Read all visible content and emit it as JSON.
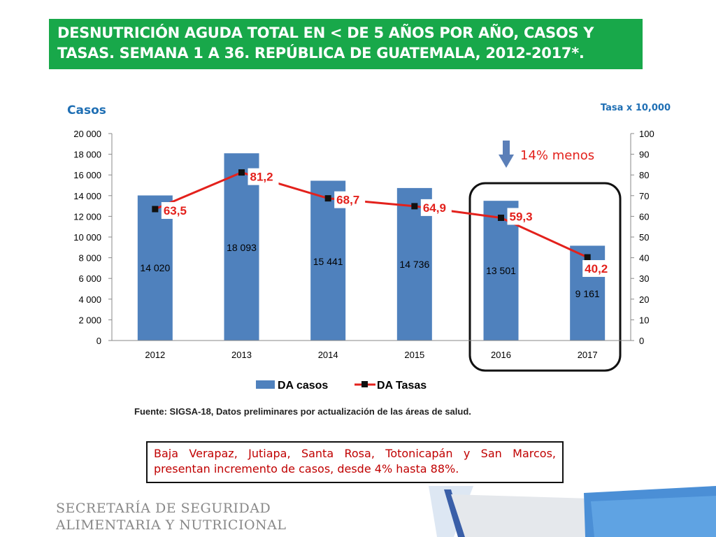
{
  "title": "DESNUTRICIÓN AGUDA TOTAL EN < DE 5 AÑOS POR AÑO, CASOS Y TASAS.  SEMANA 1 A 36. REPÚBLICA DE GUATEMALA,  2012-2017*.",
  "chart_data": {
    "type": "bar",
    "categories": [
      "2012",
      "2013",
      "2014",
      "2015",
      "2016",
      "2017"
    ],
    "series": [
      {
        "name": "DA casos",
        "axis": "left",
        "type": "bar",
        "values": [
          14020,
          18093,
          15441,
          14736,
          13501,
          9161
        ],
        "labels": [
          "14 020",
          "18 093",
          "15 441",
          "14 736",
          "13 501",
          "9 161"
        ],
        "color": "#4f81bd"
      },
      {
        "name": "DA Tasas",
        "axis": "right",
        "type": "line",
        "values": [
          63.5,
          81.2,
          68.7,
          64.9,
          59.3,
          40.2
        ],
        "labels": [
          "63,5",
          "81,2",
          "68,7",
          "64,9",
          "59,3",
          "40,2"
        ],
        "color": "#e3211c"
      }
    ],
    "ylabel_left": "Casos",
    "ylabel_right": "Tasa x 10,000",
    "ylim_left": [
      0,
      20000
    ],
    "ylim_right": [
      0,
      100
    ],
    "yticks_left": [
      "0",
      "2 000",
      "4 000",
      "6 000",
      "8 000",
      "10 000",
      "12 000",
      "14 000",
      "16 000",
      "18 000",
      "20 000"
    ],
    "yticks_right": [
      "0",
      "10",
      "20",
      "30",
      "40",
      "50",
      "60",
      "70",
      "80",
      "90",
      "100"
    ],
    "legend": [
      "DA casos",
      "DA Tasas"
    ],
    "annotation": "14% menos"
  },
  "source": "Fuente: SIGSA-18, Datos preliminares por actualización de las áreas de salud.",
  "note": "Baja Verapaz, Jutiapa, Santa Rosa, Totonicapán y San Marcos, presentan incremento de casos, desde 4% hasta 88%.",
  "footer": {
    "line1": "SECRETARÍA DE SEGURIDAD",
    "line2": "ALIMENTARIA Y NUTRICIONAL"
  }
}
